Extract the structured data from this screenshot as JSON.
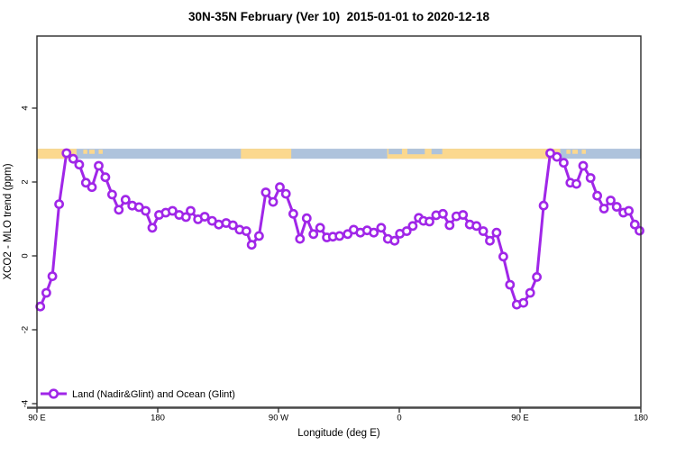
{
  "chart_data": {
    "type": "line",
    "title": "30N-35N February (Ver 10)  2015-01-01 to 2020-12-18",
    "xlabel": "Longitude (deg E)",
    "ylabel": "XCO2 - MLO trend (ppm)",
    "x_axis": {
      "description": "longitude axis starting at 90E, wrapping eastward 450 degrees",
      "span_deg": 450,
      "ticks": [
        {
          "pos": 0,
          "label": "90 E"
        },
        {
          "pos": 90,
          "label": "180"
        },
        {
          "pos": 180,
          "label": "90 W"
        },
        {
          "pos": 270,
          "label": "0"
        },
        {
          "pos": 360,
          "label": "90 E"
        },
        {
          "pos": 450,
          "label": "180"
        }
      ]
    },
    "y_axis": {
      "min": -4.1,
      "max": 5.95,
      "ticks": [
        -4,
        -2,
        0,
        2,
        4
      ],
      "grid": false
    },
    "legend": {
      "position": "bottom-left",
      "items": [
        {
          "label": "Land (Nadir&Glint) and Ocean (Glint)",
          "color": "#A026E8",
          "marker": "circle-line"
        }
      ]
    },
    "colors": {
      "series": "#A026E8",
      "marker_fill": "#ffffff",
      "land": "#FBD88E",
      "ocean": "#AEC3DC",
      "axis": "#2b2b2b",
      "baseline": "#4a4a4a"
    },
    "map_band": {
      "description": "30N-35N world coastline strip: tan = land, blue = ocean",
      "value_top": 2.9,
      "value_bottom": 2.63,
      "segments": [
        {
          "surface": "land",
          "part": "full",
          "from": 0,
          "to": 29.5
        },
        {
          "surface": "land",
          "part": "full",
          "from": 152,
          "to": 189.5
        },
        {
          "surface": "land",
          "part": "full",
          "from": 261,
          "to": 390
        },
        {
          "surface": "ocean",
          "part": "top",
          "from": 262,
          "to": 272
        },
        {
          "surface": "ocean",
          "part": "top",
          "from": 276,
          "to": 289
        },
        {
          "surface": "ocean",
          "part": "top",
          "from": 294,
          "to": 302
        },
        {
          "surface": "land",
          "part": "blob",
          "from": 34.5,
          "to": 37.5
        },
        {
          "surface": "land",
          "part": "blob",
          "from": 39,
          "to": 43
        },
        {
          "surface": "land",
          "part": "blob",
          "from": 46,
          "to": 49
        },
        {
          "surface": "land",
          "part": "blob",
          "from": 394.5,
          "to": 397.5
        },
        {
          "surface": "land",
          "part": "blob",
          "from": 399,
          "to": 403
        },
        {
          "surface": "land",
          "part": "blob",
          "from": 406,
          "to": 409
        }
      ]
    },
    "series": [
      {
        "name": "Land (Nadir&Glint) and Ocean (Glint)",
        "points": [
          [
            2.5,
            -1.37
          ],
          [
            7,
            -1.0
          ],
          [
            11.5,
            -0.55
          ],
          [
            16.5,
            1.4
          ],
          [
            22,
            2.78
          ],
          [
            27,
            2.63
          ],
          [
            31.5,
            2.47
          ],
          [
            36.5,
            1.98
          ],
          [
            41,
            1.86
          ],
          [
            46,
            2.44
          ],
          [
            51,
            2.13
          ],
          [
            56,
            1.66
          ],
          [
            61,
            1.25
          ],
          [
            66,
            1.52
          ],
          [
            71,
            1.36
          ],
          [
            76,
            1.32
          ],
          [
            81,
            1.22
          ],
          [
            86,
            0.76
          ],
          [
            91,
            1.11
          ],
          [
            96,
            1.17
          ],
          [
            101,
            1.22
          ],
          [
            106,
            1.11
          ],
          [
            111,
            1.05
          ],
          [
            114.5,
            1.22
          ],
          [
            120,
            0.99
          ],
          [
            125,
            1.06
          ],
          [
            130.5,
            0.95
          ],
          [
            135.5,
            0.85
          ],
          [
            141,
            0.89
          ],
          [
            146,
            0.83
          ],
          [
            151,
            0.71
          ],
          [
            156,
            0.67
          ],
          [
            160,
            0.3
          ],
          [
            165.5,
            0.54
          ],
          [
            170.5,
            1.72
          ],
          [
            176,
            1.46
          ],
          [
            181,
            1.86
          ],
          [
            185.5,
            1.68
          ],
          [
            191,
            1.14
          ],
          [
            196,
            0.46
          ],
          [
            201,
            1.02
          ],
          [
            206,
            0.59
          ],
          [
            211,
            0.76
          ],
          [
            216,
            0.5
          ],
          [
            220.5,
            0.52
          ],
          [
            225.5,
            0.54
          ],
          [
            231.5,
            0.59
          ],
          [
            236,
            0.71
          ],
          [
            241,
            0.63
          ],
          [
            246,
            0.69
          ],
          [
            251,
            0.63
          ],
          [
            256.5,
            0.76
          ],
          [
            261.5,
            0.46
          ],
          [
            266.5,
            0.41
          ],
          [
            270.5,
            0.6
          ],
          [
            275.5,
            0.67
          ],
          [
            280,
            0.81
          ],
          [
            284.5,
            1.03
          ],
          [
            288,
            0.95
          ],
          [
            292.5,
            0.93
          ],
          [
            297.5,
            1.1
          ],
          [
            302.5,
            1.14
          ],
          [
            307.5,
            0.83
          ],
          [
            312.5,
            1.07
          ],
          [
            317.5,
            1.11
          ],
          [
            322.5,
            0.85
          ],
          [
            327.5,
            0.81
          ],
          [
            332.5,
            0.67
          ],
          [
            337.5,
            0.41
          ],
          [
            342.5,
            0.63
          ],
          [
            347.5,
            -0.02
          ],
          [
            352.5,
            -0.78
          ],
          [
            357.5,
            -1.32
          ],
          [
            362.5,
            -1.27
          ],
          [
            367.5,
            -1.0
          ],
          [
            372.5,
            -0.57
          ],
          [
            377.5,
            1.36
          ],
          [
            382.5,
            2.78
          ],
          [
            387.5,
            2.68
          ],
          [
            392.5,
            2.52
          ],
          [
            397.5,
            1.98
          ],
          [
            402,
            1.95
          ],
          [
            407,
            2.44
          ],
          [
            412.5,
            2.11
          ],
          [
            417.5,
            1.63
          ],
          [
            422.5,
            1.28
          ],
          [
            427.5,
            1.5
          ],
          [
            432,
            1.33
          ],
          [
            437,
            1.17
          ],
          [
            441,
            1.22
          ],
          [
            445.5,
            0.85
          ],
          [
            449,
            0.68
          ]
        ]
      }
    ]
  }
}
